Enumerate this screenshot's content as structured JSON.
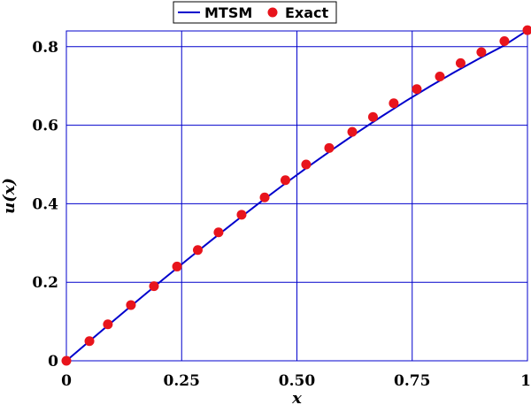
{
  "chart_data": {
    "type": "line",
    "xlabel": "x",
    "ylabel": "u(x)",
    "xlim": [
      0,
      1
    ],
    "ylim": [
      0,
      0.84
    ],
    "x_ticks": [
      0,
      0.25,
      0.5,
      0.75,
      1
    ],
    "x_tick_labels": [
      "0",
      "0.25",
      "0.50",
      "0.75",
      "1"
    ],
    "y_ticks": [
      0,
      0.2,
      0.4,
      0.6,
      0.8
    ],
    "y_tick_labels": [
      "0",
      "0.2",
      "0.4",
      "0.6",
      "0.8"
    ],
    "grid": true,
    "legend_position": "top-center",
    "series": [
      {
        "name": "MTSM",
        "style": "line",
        "color": "#0000cc",
        "x": [
          0,
          0.0526,
          0.1053,
          0.1579,
          0.2105,
          0.2632,
          0.3158,
          0.3684,
          0.4211,
          0.4737,
          0.5263,
          0.5789,
          0.6316,
          0.6842,
          0.7368,
          0.7895,
          0.8421,
          0.8947,
          0.9474,
          1.0
        ],
        "values": [
          0,
          0.0526,
          0.1049,
          0.1568,
          0.208,
          0.2584,
          0.3081,
          0.3567,
          0.4043,
          0.4507,
          0.4958,
          0.5396,
          0.5819,
          0.6227,
          0.6619,
          0.6995,
          0.7353,
          0.7694,
          0.8016,
          0.8415
        ]
      },
      {
        "name": "Exact",
        "style": "markers",
        "color": "#e8141c",
        "x": [
          0,
          0.05,
          0.09,
          0.14,
          0.19,
          0.24,
          0.285,
          0.33,
          0.38,
          0.43,
          0.475,
          0.52,
          0.57,
          0.62,
          0.665,
          0.71,
          0.76,
          0.81,
          0.855,
          0.9,
          0.95,
          1.0
        ],
        "values": [
          0,
          0.05,
          0.093,
          0.142,
          0.19,
          0.24,
          0.282,
          0.327,
          0.372,
          0.416,
          0.46,
          0.5,
          0.542,
          0.583,
          0.621,
          0.656,
          0.692,
          0.724,
          0.758,
          0.786,
          0.814,
          0.842
        ]
      }
    ]
  }
}
